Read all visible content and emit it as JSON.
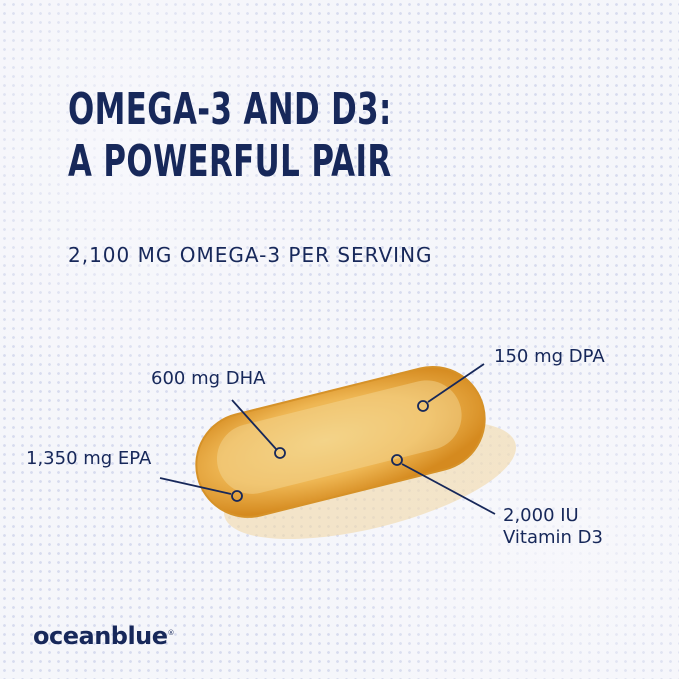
{
  "headline": {
    "line1": "OMEGA-3 AND D3:",
    "line2": "A POWERFUL PAIR"
  },
  "subheadline": "2,100 MG OMEGA-3 PER SERVING",
  "callouts": {
    "dha": "600 mg DHA",
    "epa": "1,350 mg EPA",
    "dpa": "150 mg DPA",
    "d3_line1": "2,000 IU",
    "d3_line2": "Vitamin D3"
  },
  "brand": {
    "name": "oceanblue",
    "mark": "®"
  },
  "colors": {
    "navy": "#17285a",
    "capsule": "#e8a83a",
    "background": "#f4f5fa"
  }
}
